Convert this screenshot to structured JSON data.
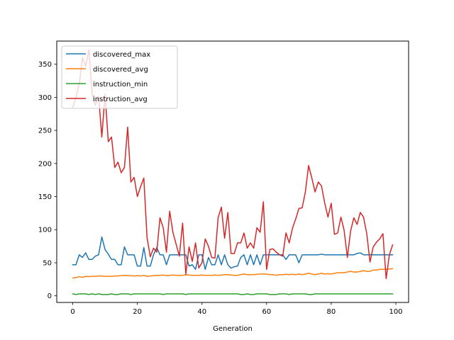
{
  "chart_data": {
    "type": "line",
    "xlabel": "Generation",
    "ylabel": "",
    "xlim": [
      -4.95,
      103.95
    ],
    "ylim": [
      -10,
      385
    ],
    "xticks": [
      0,
      20,
      40,
      60,
      80,
      100
    ],
    "yticks": [
      0,
      50,
      100,
      150,
      200,
      250,
      300,
      350
    ],
    "legend": "top-left",
    "grid": false,
    "series": [
      {
        "name": "discovered_max",
        "color": "#1f77b4",
        "values": [
          47,
          47,
          62,
          58,
          65,
          55,
          55,
          60,
          62,
          89,
          70,
          63,
          55,
          55,
          47,
          47,
          74,
          62,
          62,
          62,
          45,
          45,
          73,
          45,
          45,
          62,
          73,
          62,
          62,
          47,
          62,
          62,
          62,
          62,
          62,
          62,
          45,
          47,
          40,
          62,
          62,
          40,
          58,
          47,
          47,
          62,
          47,
          62,
          47,
          42,
          44,
          45,
          58,
          62,
          47,
          62,
          47,
          62,
          47,
          62,
          62,
          62,
          62,
          62,
          62,
          62,
          55,
          62,
          62,
          62,
          50,
          62,
          62,
          62,
          62,
          62,
          62,
          63,
          62,
          62,
          62,
          62,
          62,
          62,
          62,
          62,
          62,
          62,
          64,
          65,
          62,
          62,
          62,
          62,
          62,
          62,
          62,
          62,
          62,
          62
        ]
      },
      {
        "name": "discovered_avg",
        "color": "#ff7f0e",
        "values": [
          27,
          27.5,
          29,
          28,
          29.5,
          29,
          29.5,
          29.5,
          30,
          30,
          29.5,
          29.5,
          29.5,
          30,
          30,
          30.5,
          31,
          30.5,
          30.5,
          30,
          30.5,
          30,
          31,
          29.5,
          30,
          30.5,
          31,
          31,
          31.5,
          30.5,
          31,
          31.5,
          31,
          31,
          31,
          32,
          31.5,
          31,
          31,
          31,
          31.5,
          31,
          31,
          31,
          31.5,
          31,
          31.5,
          32,
          32,
          31.5,
          31,
          31,
          32,
          33,
          32,
          32,
          32,
          32.5,
          33,
          33,
          33,
          32,
          32,
          31,
          32,
          32,
          32.5,
          32,
          32.5,
          32,
          33,
          32,
          33,
          34,
          33,
          32,
          33,
          34,
          33,
          33.5,
          33,
          34,
          35,
          35,
          35,
          36,
          37,
          36,
          36,
          37,
          38,
          37,
          37,
          39,
          39,
          40,
          40,
          40,
          40.5,
          41
        ]
      },
      {
        "name": "instruction_min",
        "color": "#2ca02c",
        "values": [
          3,
          2,
          3,
          3,
          3,
          2,
          3,
          2,
          3,
          2,
          2,
          2,
          3,
          2,
          2,
          3,
          3,
          3,
          2,
          3,
          3,
          3,
          3,
          3,
          3,
          3,
          3,
          3,
          2,
          3,
          3,
          3,
          3,
          3,
          3,
          2,
          3,
          3,
          3,
          3,
          3,
          3,
          3,
          3,
          3,
          3,
          3,
          3,
          3,
          3,
          3,
          3,
          2,
          2,
          3,
          2,
          2,
          3,
          3,
          3,
          3,
          2,
          2,
          2,
          3,
          3,
          3,
          2,
          3,
          3,
          3,
          3,
          3,
          2,
          2,
          3,
          3,
          3,
          3,
          3,
          3,
          3,
          3,
          3,
          3,
          3,
          3,
          3,
          3,
          3,
          3,
          3,
          3,
          3,
          3,
          3,
          3,
          3,
          3,
          3
        ]
      },
      {
        "name": "instruction_avg",
        "color": "#d62728",
        "values": [
          285,
          300,
          320,
          360,
          347,
          372,
          305,
          288,
          302,
          240,
          305,
          233,
          240,
          194,
          202,
          186,
          194,
          255,
          172,
          179,
          150,
          165,
          178,
          88,
          59,
          72,
          66,
          118,
          103,
          66,
          128,
          96,
          78,
          60,
          110,
          33,
          74,
          52,
          80,
          42,
          50,
          86,
          75,
          58,
          57,
          118,
          134,
          87,
          126,
          64,
          64,
          80,
          80,
          95,
          72,
          80,
          72,
          103,
          96,
          142,
          40,
          70,
          71,
          66,
          62,
          60,
          95,
          80,
          102,
          116,
          132,
          133,
          157,
          197,
          178,
          157,
          172,
          166,
          140,
          119,
          140,
          93,
          95,
          119,
          99,
          58,
          98,
          118,
          108,
          126,
          119,
          94,
          51,
          74,
          81,
          86,
          94,
          26,
          62,
          77
        ]
      }
    ]
  }
}
